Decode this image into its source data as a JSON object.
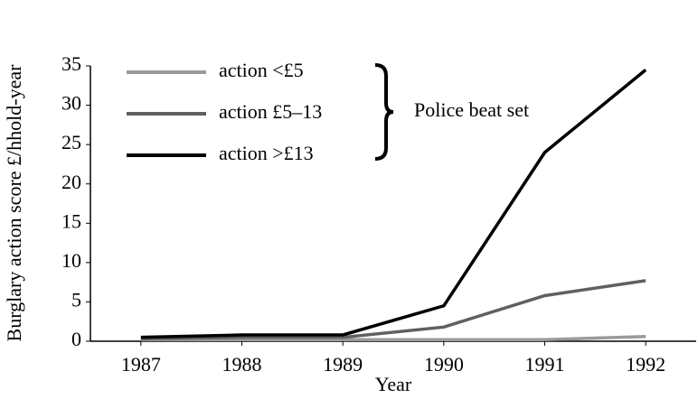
{
  "chart_data": {
    "type": "line",
    "y_label": "Burglary action score £/hhold-year",
    "x_label": "Year",
    "x": [
      1987,
      1988,
      1989,
      1990,
      1991,
      1992
    ],
    "xlim": [
      1986.5,
      1992.5
    ],
    "xticks": [
      1987,
      1988,
      1989,
      1990,
      1991,
      1992
    ],
    "ylim": [
      0,
      35
    ],
    "yticks": [
      0,
      5,
      10,
      15,
      20,
      25,
      30,
      35
    ],
    "series": [
      {
        "name": "action <£5",
        "color": "#9a9a9a",
        "values": [
          0.2,
          0.2,
          0.2,
          0.2,
          0.2,
          0.6
        ]
      },
      {
        "name": "action £5–13",
        "color": "#606060",
        "values": [
          0.3,
          0.5,
          0.5,
          1.8,
          5.8,
          7.7
        ]
      },
      {
        "name": "action >£13",
        "color": "#000000",
        "values": [
          0.5,
          0.8,
          0.8,
          4.5,
          24,
          34.5
        ]
      }
    ],
    "annotation": "Police beat set"
  }
}
